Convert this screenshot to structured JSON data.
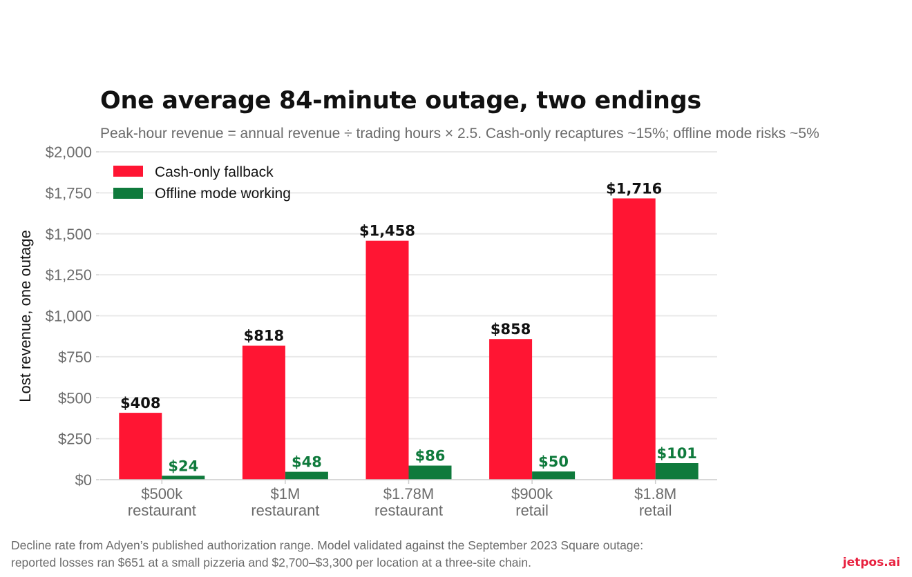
{
  "header": {
    "title": "One average 84-minute outage, two endings",
    "subtitle": "Peak-hour revenue = annual revenue ÷ trading hours × 2.5. Cash-only recaptures ~15%; offline mode risks ~5%"
  },
  "footer": {
    "note_line1": "Decline rate from Adyen’s published authorization range. Model validated against the September 2023 Square outage:",
    "note_line2": "reported losses ran $651 at a small pizzeria and $2,700–$3,300 per location at a three-site chain.",
    "brand": "jetpos.ai"
  },
  "colors": {
    "cash": "#ff1533",
    "offline": "#0f7a3c",
    "grid": "#e9e9e9",
    "axis": "#cccccc",
    "tick_text": "#6b6b6b",
    "cash_label": "#111111",
    "offline_label": "#0f7a3c"
  },
  "chart_data": {
    "type": "bar",
    "title": "One average 84-minute outage, two endings",
    "subtitle": "Peak-hour revenue = annual revenue ÷ trading hours × 2.5. Cash-only recaptures ~15%; offline mode risks ~5%",
    "xlabel": "",
    "ylabel": "Lost revenue, one outage",
    "ylim": [
      0,
      2000
    ],
    "yticks": [
      0,
      250,
      500,
      750,
      1000,
      1250,
      1500,
      1750,
      2000
    ],
    "ytick_labels": [
      "$0",
      "$250",
      "$500",
      "$750",
      "$1,000",
      "$1,250",
      "$1,500",
      "$1,750",
      "$2,000"
    ],
    "categories": [
      [
        "$500k",
        "restaurant"
      ],
      [
        "$1M",
        "restaurant"
      ],
      [
        "$1.78M",
        "restaurant"
      ],
      [
        "$900k",
        "retail"
      ],
      [
        "$1.8M",
        "retail"
      ]
    ],
    "series": [
      {
        "name": "Cash-only fallback",
        "values": [
          408,
          818,
          1458,
          858,
          1716
        ],
        "labels": [
          "$408",
          "$818",
          "$1,458",
          "$858",
          "$1,716"
        ]
      },
      {
        "name": "Offline mode working",
        "values": [
          24,
          48,
          86,
          50,
          101
        ],
        "labels": [
          "$24",
          "$48",
          "$86",
          "$50",
          "$101"
        ]
      }
    ],
    "legend": "top-left",
    "grid": true
  }
}
